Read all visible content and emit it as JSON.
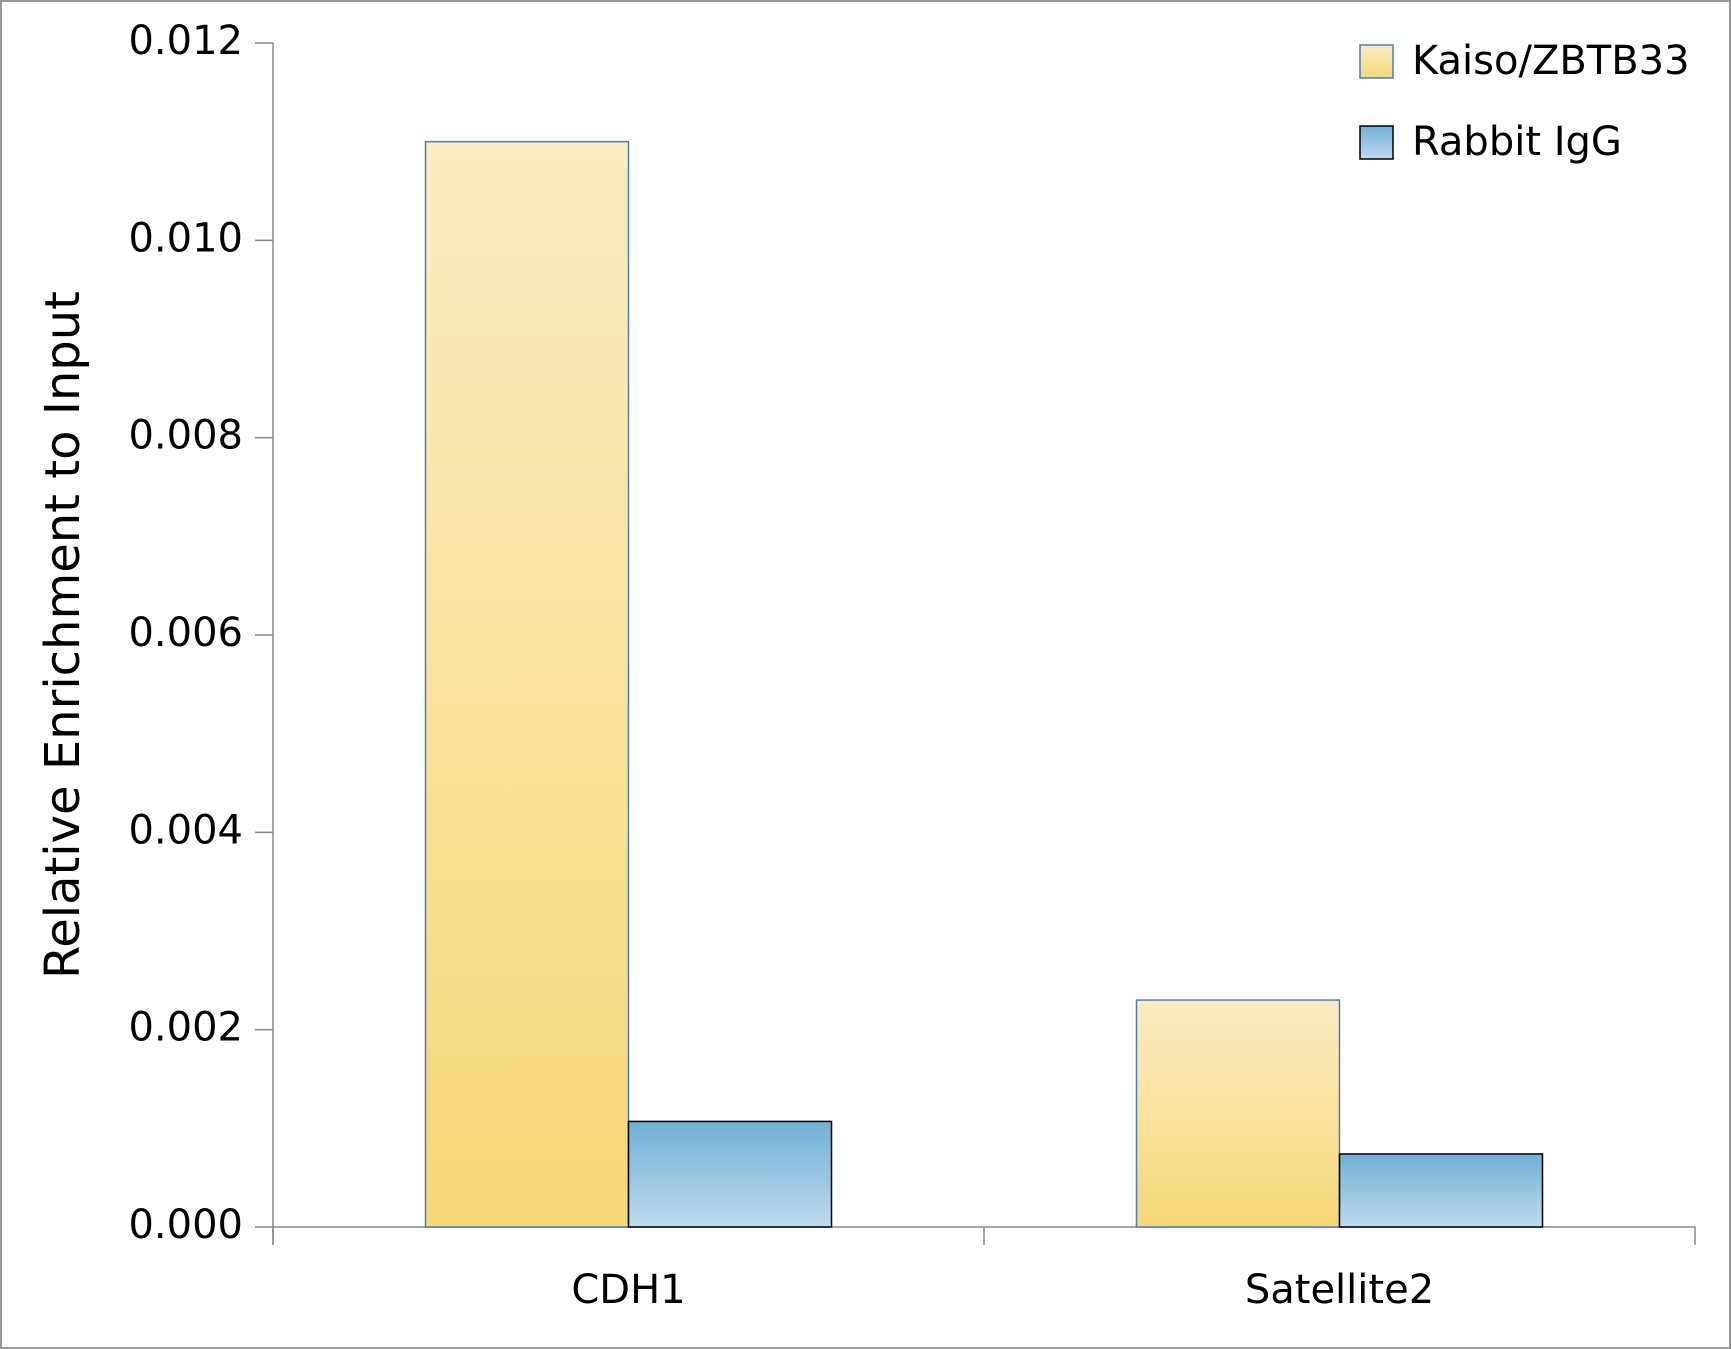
{
  "chart_data": {
    "type": "bar",
    "y_label": "Relative Enrichment to Input",
    "categories": [
      "CDH1",
      "Satellite2"
    ],
    "series": [
      {
        "name": "Kaiso/ZBTB33",
        "color": "#f5d878",
        "values": [
          0.011,
          0.0023
        ]
      },
      {
        "name": "Rabbit IgG",
        "color": "#6fb0d6",
        "values": [
          0.00107,
          0.00074
        ]
      }
    ],
    "ylim": [
      0,
      0.012
    ],
    "yticks": [
      {
        "value": 0,
        "label": "0.000"
      },
      {
        "value": 0.002,
        "label": "0.002"
      },
      {
        "value": 0.004,
        "label": "0.004"
      },
      {
        "value": 0.006,
        "label": "0.006"
      },
      {
        "value": 0.008,
        "label": "0.008"
      },
      {
        "value": 0.01,
        "label": "0.010"
      },
      {
        "value": 0.012,
        "label": "0.012"
      }
    ],
    "grid": false,
    "legend": "top-right"
  }
}
